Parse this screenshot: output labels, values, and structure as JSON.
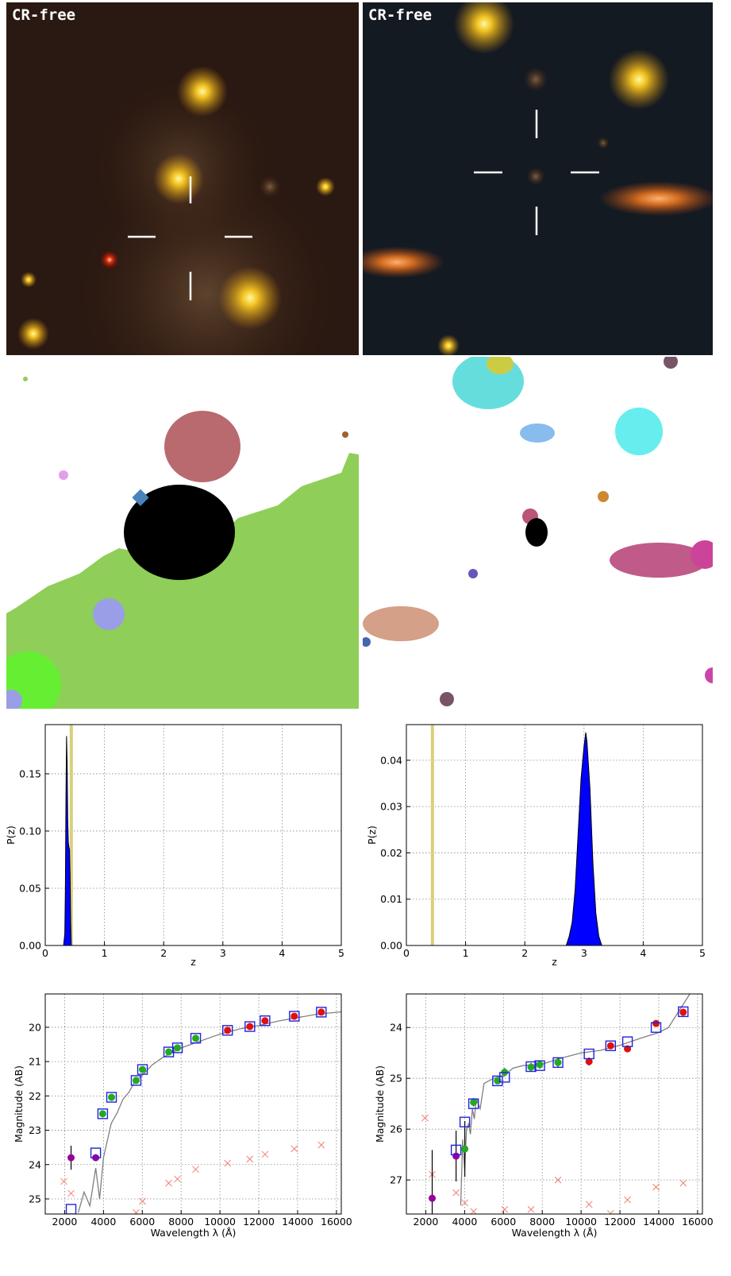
{
  "images": [
    {
      "label": "CR-free"
    },
    {
      "label": "CR-free"
    }
  ],
  "chart_data": [
    {
      "type": "area",
      "xlabel": "z",
      "ylabel": "P(z)",
      "xlim": [
        0,
        5
      ],
      "ylim": [
        0,
        0.193
      ],
      "xticks": [
        0,
        1,
        2,
        3,
        4,
        5
      ],
      "yticks": [
        {
          "value": 0,
          "label": "0.00"
        },
        {
          "value": 0.05,
          "label": "0.05"
        },
        {
          "value": 0.1,
          "label": "0.10"
        },
        {
          "value": 0.15,
          "label": "0.15"
        }
      ],
      "grid": true,
      "color": "#0000ff",
      "vline": 0.44,
      "vline_color": "#d8d07a",
      "x": [
        0.31,
        0.33,
        0.34,
        0.35,
        0.36,
        0.37,
        0.38,
        0.39,
        0.4,
        0.41,
        0.42,
        0.43,
        0.44
      ],
      "values": [
        0,
        0.01,
        0.05,
        0.13,
        0.183,
        0.16,
        0.11,
        0.09,
        0.086,
        0.084,
        0.06,
        0.02,
        0
      ]
    },
    {
      "type": "area",
      "xlabel": "z",
      "ylabel": "P(z)",
      "xlim": [
        0,
        5
      ],
      "ylim": [
        0,
        0.0477
      ],
      "xticks": [
        0,
        1,
        2,
        3,
        4,
        5
      ],
      "yticks": [
        {
          "value": 0,
          "label": "0.00"
        },
        {
          "value": 0.01,
          "label": "0.01"
        },
        {
          "value": 0.02,
          "label": "0.02"
        },
        {
          "value": 0.03,
          "label": "0.03"
        },
        {
          "value": 0.04,
          "label": "0.04"
        }
      ],
      "grid": true,
      "color": "#0000ff",
      "vline": 0.44,
      "vline_color": "#d8d07a",
      "x": [
        2.7,
        2.75,
        2.8,
        2.85,
        2.9,
        2.95,
        3.0,
        3.03,
        3.05,
        3.1,
        3.15,
        3.2,
        3.25,
        3.3
      ],
      "values": [
        0,
        0.002,
        0.005,
        0.012,
        0.024,
        0.036,
        0.043,
        0.046,
        0.044,
        0.034,
        0.018,
        0.007,
        0.002,
        0
      ]
    },
    {
      "type": "scatter",
      "xlabel": "Wavelength  λ (Å)",
      "ylabel": "Magnitude (AB)",
      "xlim": [
        1000,
        16250
      ],
      "ylim": [
        25.44,
        19.03
      ],
      "xticks": [
        2000,
        4000,
        6000,
        8000,
        10000,
        12000,
        14000,
        16000
      ],
      "yticks": [
        20,
        21,
        22,
        23,
        24,
        25
      ],
      "grid": true,
      "series": [
        {
          "marker": "line",
          "color": "#808080",
          "x": [
            2700,
            3000,
            3300,
            3600,
            3800,
            4000,
            4200,
            4400,
            4700,
            5000,
            5300,
            5600,
            6000,
            6500,
            7000,
            7500,
            8000,
            9000,
            10000,
            11000,
            12000,
            13000,
            14000,
            15000,
            16250
          ],
          "values": [
            25.4,
            24.8,
            25.2,
            24.1,
            25.0,
            23.8,
            23.3,
            22.8,
            22.5,
            22.1,
            21.9,
            21.6,
            21.4,
            21.1,
            20.9,
            20.75,
            20.6,
            20.4,
            20.2,
            20.05,
            19.95,
            19.82,
            19.72,
            19.62,
            19.55
          ]
        },
        {
          "marker": "x",
          "color": "#f08070",
          "x": [
            1960,
            2330,
            5680,
            6010,
            7360,
            7810,
            8750,
            10390,
            11540,
            12320,
            13830,
            15220
          ],
          "values": [
            24.49,
            24.84,
            25.4,
            25.07,
            24.54,
            24.42,
            24.14,
            23.96,
            23.84,
            23.7,
            23.54,
            23.43
          ]
        },
        {
          "marker": "circle",
          "color": "#22aa22",
          "x": [
            3960,
            4415,
            5680,
            6010,
            7360,
            7810,
            8750
          ],
          "values": [
            22.52,
            22.04,
            21.55,
            21.23,
            20.72,
            20.6,
            20.32
          ],
          "errors": [
            0.05,
            0.05,
            0.05,
            0.05,
            0.05,
            0.05,
            0.05
          ]
        },
        {
          "marker": "circle",
          "color": "#dd1111",
          "x": [
            10390,
            11540,
            12320,
            13830,
            15220
          ],
          "values": [
            20.09,
            19.98,
            19.81,
            19.68,
            19.56
          ],
          "errors": [
            0.05,
            0.05,
            0.05,
            0.05,
            0.05
          ]
        },
        {
          "marker": "circle",
          "color": "#990099",
          "x": [
            2330,
            3600
          ],
          "values": [
            23.8,
            23.8
          ],
          "errors": [
            0.35,
            0.1
          ]
        },
        {
          "marker": "square",
          "color": "#2222dd",
          "x": [
            2330,
            3600,
            3960,
            4415,
            5680,
            6010,
            7360,
            7810,
            8750,
            10390,
            11540,
            12320,
            13830,
            15220
          ],
          "values": [
            25.3,
            23.66,
            22.52,
            22.04,
            21.55,
            21.23,
            20.72,
            20.6,
            20.32,
            20.09,
            19.98,
            19.81,
            19.68,
            19.56
          ]
        }
      ]
    },
    {
      "type": "scatter",
      "xlabel": "Wavelength  λ (Å)",
      "ylabel": "Magnitude (AB)",
      "xlim": [
        1000,
        16250
      ],
      "ylim": [
        27.67,
        23.34
      ],
      "xticks": [
        2000,
        4000,
        6000,
        8000,
        10000,
        12000,
        14000,
        16000
      ],
      "yticks": [
        24,
        25,
        26,
        27
      ],
      "grid": true,
      "series": [
        {
          "marker": "line",
          "color": "#808080",
          "x": [
            3800,
            3900,
            4000,
            4100,
            4200,
            4300,
            4400,
            4500,
            4600,
            4800,
            5000,
            5500,
            6000,
            6500,
            7000,
            8000,
            9000,
            10000,
            11000,
            12000,
            13000,
            14000,
            14500,
            15000,
            15500,
            16000,
            16250
          ],
          "values": [
            27.5,
            26.2,
            26.8,
            26.0,
            25.9,
            26.1,
            25.6,
            25.8,
            25.4,
            25.6,
            25.1,
            25.0,
            24.95,
            24.8,
            24.75,
            24.72,
            24.6,
            24.5,
            24.45,
            24.35,
            24.22,
            24.1,
            24.0,
            23.7,
            23.4,
            23.1,
            23.3
          ]
        },
        {
          "marker": "x",
          "color": "#f08070",
          "x": [
            1960,
            2330,
            3560,
            4010,
            4460,
            6060,
            7420,
            8810,
            10410,
            11520,
            12390,
            13860,
            15260
          ],
          "values": [
            25.78,
            26.89,
            27.25,
            27.45,
            27.62,
            27.58,
            27.58,
            27.0,
            27.48,
            27.66,
            27.39,
            27.14,
            27.06
          ]
        },
        {
          "marker": "circle",
          "color": "#22aa22",
          "x": [
            4010,
            4460,
            5695,
            6060,
            7420,
            7870,
            8810
          ],
          "values": [
            26.39,
            25.47,
            25.05,
            24.88,
            24.78,
            24.73,
            24.69
          ],
          "errors": [
            0.55,
            0.08,
            0.05,
            0.08,
            0.08,
            0.08,
            0.1
          ]
        },
        {
          "marker": "circle",
          "color": "#dd1111",
          "x": [
            10410,
            11520,
            12390,
            13860,
            15260
          ],
          "values": [
            24.67,
            24.36,
            24.42,
            23.92,
            23.7
          ],
          "errors": [
            0.08,
            0.06,
            0.06,
            0.05,
            0.05
          ]
        },
        {
          "marker": "circle",
          "color": "#990099",
          "x": [
            2330,
            3560
          ],
          "values": [
            27.36,
            26.53
          ],
          "errors": [
            0.95,
            0.5
          ]
        },
        {
          "marker": "square",
          "color": "#2222dd",
          "x": [
            3560,
            4010,
            4460,
            5695,
            6060,
            7420,
            7870,
            8810,
            10410,
            11520,
            12390,
            13860,
            15260
          ],
          "values": [
            26.41,
            25.86,
            25.5,
            25.05,
            24.98,
            24.77,
            24.75,
            24.69,
            24.52,
            24.36,
            24.28,
            24.0,
            23.69
          ]
        }
      ]
    }
  ]
}
